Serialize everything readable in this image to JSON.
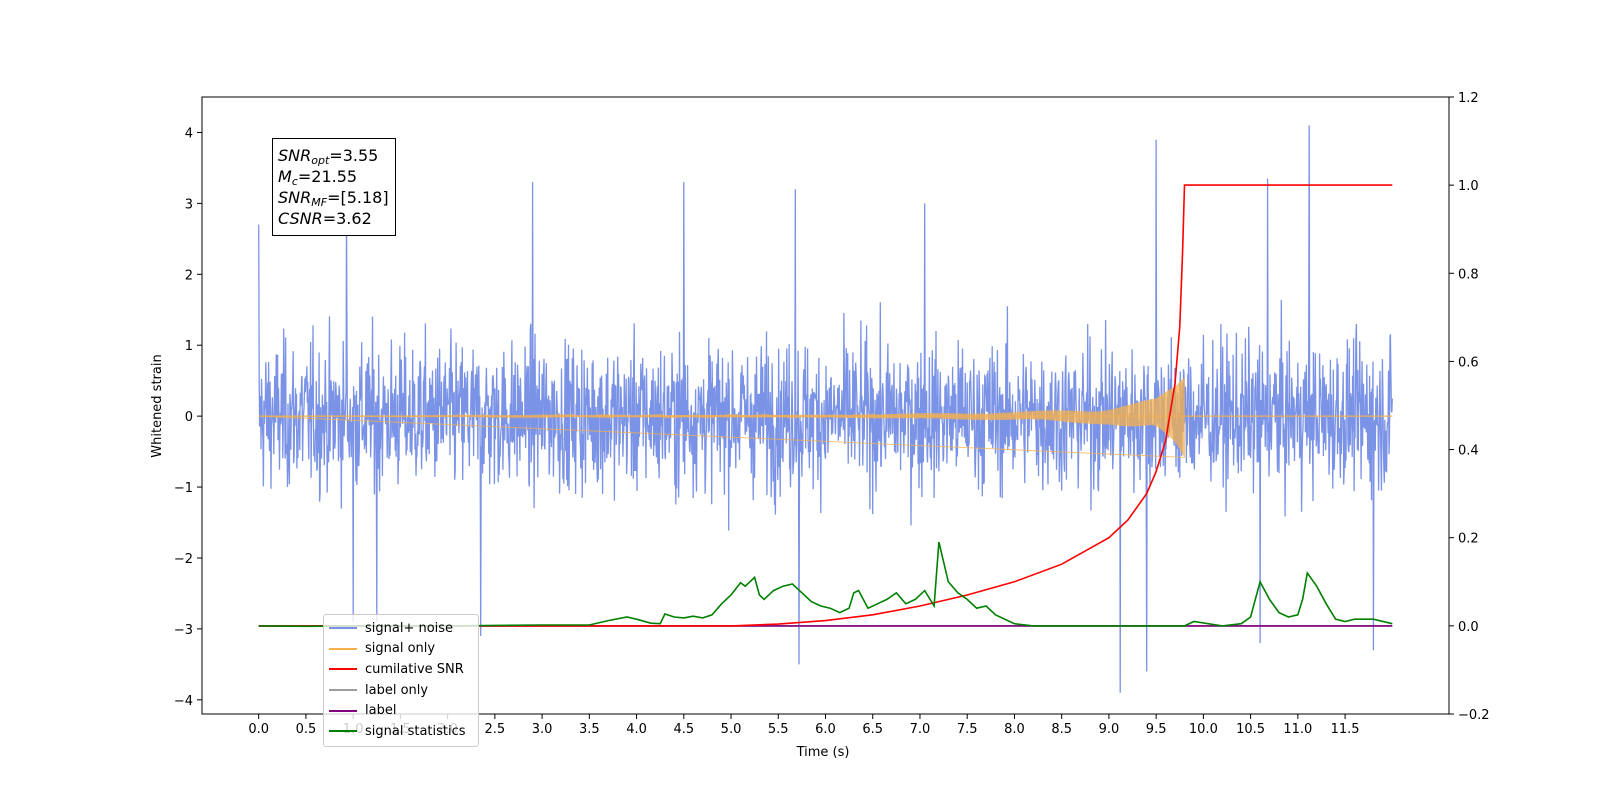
{
  "chart_data": {
    "type": "line",
    "xlabel": "Time (s)",
    "ylabel": "Whitened strain",
    "xlim": [
      -0.6,
      12.6
    ],
    "ylim": [
      -4.2,
      4.5
    ],
    "y2lim": [
      -0.2,
      1.2
    ],
    "x_ticks": [
      "0.0",
      "0.5",
      "1.0",
      "1.5",
      "2.0",
      "2.5",
      "3.0",
      "3.5",
      "4.0",
      "4.5",
      "5.0",
      "5.5",
      "6.0",
      "6.5",
      "7.0",
      "7.5",
      "8.0",
      "8.5",
      "9.0",
      "9.5",
      "10.0",
      "10.5",
      "11.0",
      "11.5"
    ],
    "y_ticks": [
      "4",
      "3",
      "2",
      "1",
      "0",
      "−1",
      "−2",
      "−3",
      "−4"
    ],
    "y2_ticks": [
      "1.2",
      "1.0",
      "0.8",
      "0.6",
      "0.4",
      "0.2",
      "0.0",
      "−0.2"
    ],
    "legend_placement": "lower-left",
    "annotation": [
      {
        "sym": "SNR",
        "sub": "opt",
        "value": "=3.55"
      },
      {
        "sym": "M",
        "sub": "c",
        "value": "=21.55"
      },
      {
        "sym": "SNR",
        "sub": "MF",
        "value": "=[5.18]"
      },
      {
        "sym": "CSNR",
        "sub": "",
        "value": "=3.62"
      }
    ],
    "series": [
      {
        "name": "signal+ noise",
        "color": "#7b93e6",
        "axis": "left",
        "description_of_shape": "whitened noise between about -2 and 2 with spikes",
        "x_range": [
          0.0,
          12.0
        ],
        "spikes": [
          [
            0.0,
            2.7
          ],
          [
            0.93,
            3.0
          ],
          [
            1.0,
            -2.9
          ],
          [
            1.25,
            -2.9
          ],
          [
            2.9,
            3.3
          ],
          [
            2.35,
            -3.1
          ],
          [
            4.5,
            3.3
          ],
          [
            5.68,
            3.2
          ],
          [
            5.72,
            -3.5
          ],
          [
            7.05,
            3.0
          ],
          [
            9.5,
            3.9
          ],
          [
            9.12,
            -3.9
          ],
          [
            9.4,
            -3.6
          ],
          [
            10.68,
            3.35
          ],
          [
            11.12,
            4.1
          ],
          [
            11.8,
            -3.3
          ],
          [
            10.6,
            -3.2
          ]
        ]
      },
      {
        "name": "signal only",
        "color": "#f5b04c",
        "axis": "left",
        "x_range": [
          0.0,
          9.8
        ],
        "amplitude": [
          [
            0.0,
            0.0
          ],
          [
            6.0,
            0.02
          ],
          [
            8.0,
            0.06
          ],
          [
            9.0,
            0.12
          ],
          [
            9.5,
            0.25
          ],
          [
            9.7,
            0.45
          ],
          [
            9.8,
            0.65
          ]
        ]
      },
      {
        "name": "cumilative SNR",
        "color": "#ff0000",
        "axis": "right",
        "x": [
          0.0,
          5.0,
          5.5,
          6.0,
          6.5,
          7.0,
          7.5,
          8.0,
          8.5,
          9.0,
          9.2,
          9.4,
          9.5,
          9.6,
          9.7,
          9.75,
          9.78,
          9.8,
          12.0
        ],
        "y": [
          0.0,
          0.0,
          0.004,
          0.012,
          0.025,
          0.045,
          0.07,
          0.1,
          0.14,
          0.2,
          0.24,
          0.3,
          0.35,
          0.42,
          0.55,
          0.68,
          0.85,
          1.0,
          1.0
        ]
      },
      {
        "name": "label only",
        "color": "#9e9e9e",
        "axis": "right",
        "x": [
          0.0,
          12.0
        ],
        "y": [
          0.0,
          0.0
        ]
      },
      {
        "name": "label",
        "color": "#800080",
        "axis": "right",
        "x": [
          0.0,
          12.0
        ],
        "y": [
          0.0,
          0.0
        ]
      },
      {
        "name": "signal statistics",
        "color": "#008000",
        "axis": "right",
        "x": [
          0.0,
          0.1,
          0.5,
          1.0,
          2.0,
          3.0,
          3.5,
          3.7,
          3.9,
          4.0,
          4.15,
          4.25,
          4.3,
          4.4,
          4.5,
          4.6,
          4.7,
          4.8,
          4.9,
          5.0,
          5.1,
          5.15,
          5.2,
          5.25,
          5.3,
          5.35,
          5.45,
          5.55,
          5.65,
          5.75,
          5.85,
          5.95,
          6.05,
          6.15,
          6.25,
          6.3,
          6.35,
          6.45,
          6.55,
          6.65,
          6.75,
          6.85,
          6.95,
          7.05,
          7.15,
          7.2,
          7.3,
          7.4,
          7.5,
          7.6,
          7.7,
          7.8,
          8.0,
          8.2,
          9.0,
          9.5,
          9.7,
          9.8,
          9.9,
          10.2,
          10.4,
          10.5,
          10.55,
          10.6,
          10.7,
          10.8,
          10.9,
          11.0,
          11.05,
          11.1,
          11.2,
          11.3,
          11.4,
          11.5,
          11.6,
          11.8,
          12.0
        ],
        "y": [
          0.0,
          0.0,
          -0.001,
          0.0,
          0.0,
          0.002,
          0.002,
          0.012,
          0.02,
          0.015,
          0.006,
          0.005,
          0.027,
          0.02,
          0.018,
          0.022,
          0.018,
          0.025,
          0.05,
          0.07,
          0.098,
          0.09,
          0.1,
          0.11,
          0.07,
          0.06,
          0.08,
          0.09,
          0.095,
          0.075,
          0.055,
          0.045,
          0.04,
          0.03,
          0.04,
          0.075,
          0.08,
          0.04,
          0.05,
          0.06,
          0.075,
          0.05,
          0.06,
          0.08,
          0.045,
          0.19,
          0.1,
          0.075,
          0.06,
          0.04,
          0.045,
          0.025,
          0.005,
          0.0,
          0.0,
          0.0,
          0.0,
          0.0,
          0.01,
          0.0,
          0.005,
          0.02,
          0.06,
          0.1,
          0.06,
          0.03,
          0.02,
          0.025,
          0.06,
          0.12,
          0.09,
          0.05,
          0.015,
          0.01,
          0.015,
          0.015,
          0.005
        ]
      }
    ]
  }
}
